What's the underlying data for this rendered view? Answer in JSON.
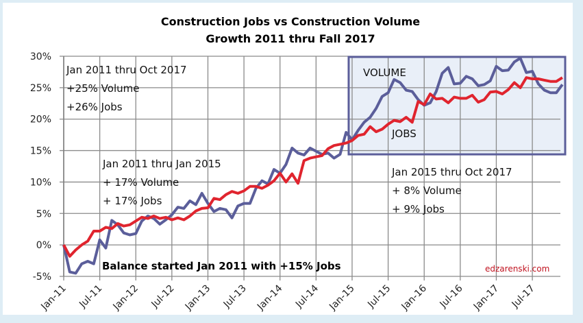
{
  "chart_data": {
    "type": "line",
    "title": "Construction Jobs vs Construction Volume",
    "subtitle": "Growth 2011 thru Fall 2017",
    "xlabel": "",
    "ylabel": "",
    "ylim": [
      -5,
      30
    ],
    "y_ticks": [
      "30%",
      "25%",
      "20%",
      "15%",
      "10%",
      "5%",
      "0%",
      "-5%"
    ],
    "y_tick_values": [
      30,
      25,
      20,
      15,
      10,
      5,
      0,
      -5
    ],
    "x_ticks": [
      "Jan-11",
      "Jul-11",
      "Jan-12",
      "Jul-12",
      "Jan-13",
      "Jul-13",
      "Jan-14",
      "Jul-14",
      "Jan-15",
      "Jul-15",
      "Jan-16",
      "Jul-16",
      "Jan-17",
      "Jul-17"
    ],
    "grid": true,
    "legend": "none (inline labels)",
    "series": [
      {
        "name": "VOLUME",
        "color": "#5b5e9a",
        "values": [
          0,
          -4.3,
          -4.5,
          -3.0,
          -2.6,
          -3.0,
          0.8,
          -0.5,
          3.9,
          3.2,
          1.9,
          1.6,
          1.8,
          3.8,
          4.6,
          4.2,
          3.3,
          4.0,
          4.8,
          6.0,
          5.8,
          7.0,
          6.4,
          8.2,
          6.6,
          5.3,
          5.8,
          5.6,
          4.3,
          6.2,
          6.6,
          6.6,
          9.0,
          10.2,
          9.7,
          12.0,
          11.4,
          12.8,
          15.4,
          14.6,
          14.3,
          15.4,
          14.9,
          14.4,
          14.6,
          13.8,
          14.4,
          17.9,
          16.7,
          18.2,
          19.5,
          20.3,
          21.7,
          23.6,
          24.2,
          26.3,
          25.8,
          24.6,
          24.4,
          23.1,
          22.2,
          22.6,
          24.4,
          27.3,
          28.2,
          25.6,
          25.7,
          26.8,
          26.4,
          25.3,
          25.5,
          26.1,
          28.4,
          27.7,
          27.8,
          29.1,
          29.7,
          27.4,
          27.6,
          25.6,
          24.6,
          24.2,
          24.2,
          25.5
        ]
      },
      {
        "name": "JOBS",
        "color": "#e0242e",
        "values": [
          0,
          -1.8,
          -0.8,
          0,
          0.6,
          2.2,
          2.2,
          2.8,
          2.6,
          3.4,
          3.0,
          3.2,
          3.8,
          4.4,
          4.2,
          4.6,
          4.2,
          4.4,
          4.0,
          4.3,
          4.0,
          4.6,
          5.4,
          5.8,
          5.9,
          7.4,
          7.2,
          8.0,
          8.5,
          8.2,
          8.6,
          9.3,
          9.3,
          9.0,
          9.5,
          10.2,
          11.4,
          10.0,
          11.3,
          9.8,
          13.4,
          13.8,
          14.0,
          14.2,
          15.3,
          15.8,
          16.0,
          16.2,
          16.6,
          17.4,
          17.6,
          18.8,
          18.0,
          18.4,
          19.2,
          19.8,
          19.6,
          20.3,
          19.5,
          22.8,
          22.3,
          24.0,
          23.2,
          23.3,
          22.6,
          23.5,
          23.3,
          23.3,
          23.8,
          22.7,
          23.1,
          24.3,
          24.4,
          24.0,
          24.7,
          25.8,
          25.0,
          26.6,
          26.4,
          26.4,
          26.2,
          26.0,
          26.0,
          26.6
        ]
      }
    ],
    "annotations": [
      {
        "lines": [
          "Jan 2011 thru Oct 2017",
          "+25% Volume",
          "+26% Jobs"
        ]
      },
      {
        "lines": [
          "Jan 2011 thru Jan 2015",
          "+ 17% Volume",
          "+ 17% Jobs"
        ]
      },
      {
        "lines": [
          "Jan 2015 thru Oct 2017",
          "+ 8% Volume",
          "+ 9% Jobs"
        ]
      },
      {
        "text": "Balance started Jan 2011 with +15% Jobs",
        "bold": true
      },
      {
        "text": "VOLUME"
      },
      {
        "text": "JOBS"
      },
      {
        "text": "edzarenski.com",
        "color": "#c0121f"
      }
    ],
    "highlight_box": {
      "from": "Jan-15",
      "to": "end",
      "ymin": 14.4,
      "ymax": 30,
      "fill": "#e9eff8",
      "stroke": "#5b5e9a"
    }
  },
  "labels": {
    "title": "Construction Jobs vs Construction Volume",
    "subtitle": "Growth 2011 thru Fall 2017",
    "anno_total_1": "Jan 2011 thru Oct 2017",
    "anno_total_2": "+25% Volume",
    "anno_total_3": "+26% Jobs",
    "anno_early_1": "Jan 2011 thru Jan 2015",
    "anno_early_2": "+ 17% Volume",
    "anno_early_3": "+ 17% Jobs",
    "anno_late_1": "Jan 2015 thru Oct 2017",
    "anno_late_2": "+ 8% Volume",
    "anno_late_3": "+ 9% Jobs",
    "balance_note": "Balance started Jan 2011 with +15% Jobs",
    "volume_label": "VOLUME",
    "jobs_label": "JOBS",
    "watermark": "edzarenski.com"
  }
}
